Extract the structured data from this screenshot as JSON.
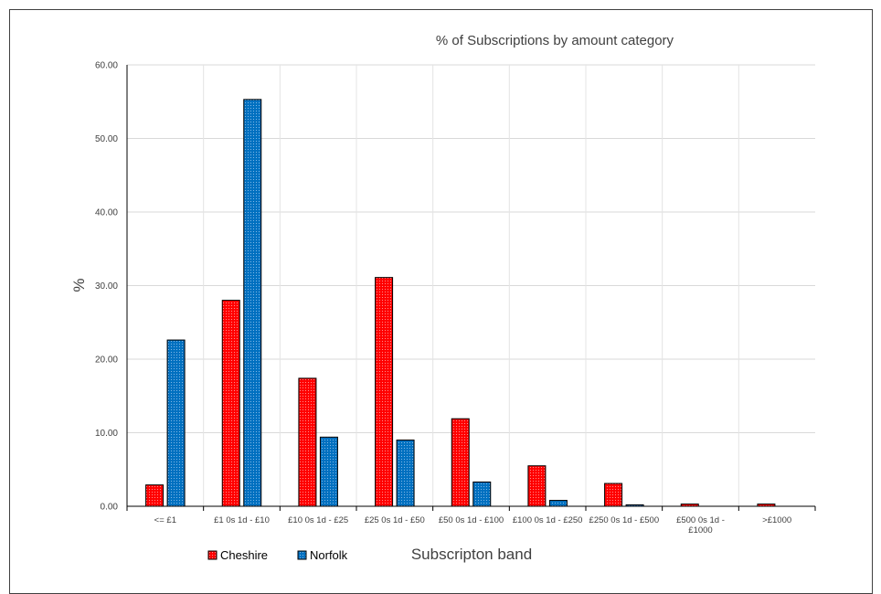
{
  "chart_data": {
    "type": "bar",
    "title": "% of Subscriptions by amount category",
    "xlabel": "Subscripton band",
    "ylabel": "%",
    "ylim": [
      0,
      60
    ],
    "yticks": [
      "0.00",
      "10.00",
      "20.00",
      "30.00",
      "40.00",
      "50.00",
      "60.00"
    ],
    "grid": true,
    "legend_position": "bottom-left",
    "categories": [
      [
        "<= £1"
      ],
      [
        "£1 0s 1d - £10"
      ],
      [
        "£10 0s 1d - £25"
      ],
      [
        "£25 0s 1d - £50"
      ],
      [
        "£50 0s 1d - £100"
      ],
      [
        "£100 0s 1d - £250"
      ],
      [
        "£250 0s 1d - £500"
      ],
      [
        "£500 0s 1d -",
        "£1000"
      ],
      [
        ">£1000"
      ]
    ],
    "series": [
      {
        "name": "Cheshire",
        "color": "#ff0000",
        "values": [
          2.9,
          28.0,
          17.4,
          31.1,
          11.9,
          5.5,
          3.1,
          0.3,
          0.3
        ]
      },
      {
        "name": "Norfolk",
        "color": "#0070c0",
        "values": [
          22.6,
          55.3,
          9.4,
          9.0,
          3.3,
          0.8,
          0.2,
          0.0,
          0.0
        ]
      }
    ]
  }
}
